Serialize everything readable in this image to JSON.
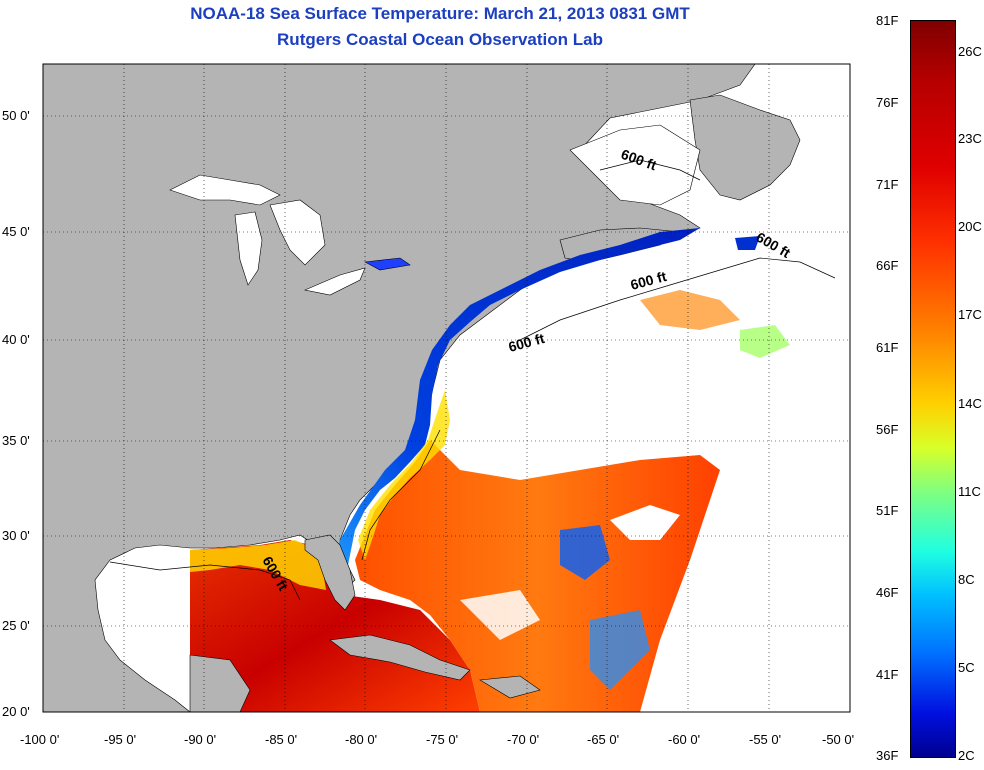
{
  "title": {
    "line1": "NOAA-18 Sea Surface Temperature:  March 21, 2013 0831 GMT",
    "line2": "Rutgers Coastal Ocean Observation Lab"
  },
  "map": {
    "lat_labels": [
      "50 0'",
      "45 0'",
      "40 0'",
      "35 0'",
      "30 0'",
      "25 0'",
      "20 0'"
    ],
    "lon_labels": [
      "-100 0'",
      "-95 0'",
      "-90 0'",
      "-85 0'",
      "-80 0'",
      "-75 0'",
      "-70 0'",
      "-65 0'",
      "-60 0'",
      "-55 0'",
      "-50 0'"
    ],
    "isobath_label": "600 ft",
    "colors": {
      "land": "#b4b4b4",
      "ocean_no_data": "#ffffff",
      "title": "#1c3fbf"
    }
  },
  "colorbar": {
    "fahrenheit_labels": [
      "81F",
      "76F",
      "71F",
      "66F",
      "61F",
      "56F",
      "51F",
      "46F",
      "41F",
      "36F"
    ],
    "celsius_labels": [
      "26C",
      "23C",
      "20C",
      "17C",
      "14C",
      "11C",
      "8C",
      "5C",
      "2C"
    ],
    "colormap": "jet",
    "range_f": [
      36,
      81
    ],
    "range_c": [
      2,
      27
    ]
  }
}
